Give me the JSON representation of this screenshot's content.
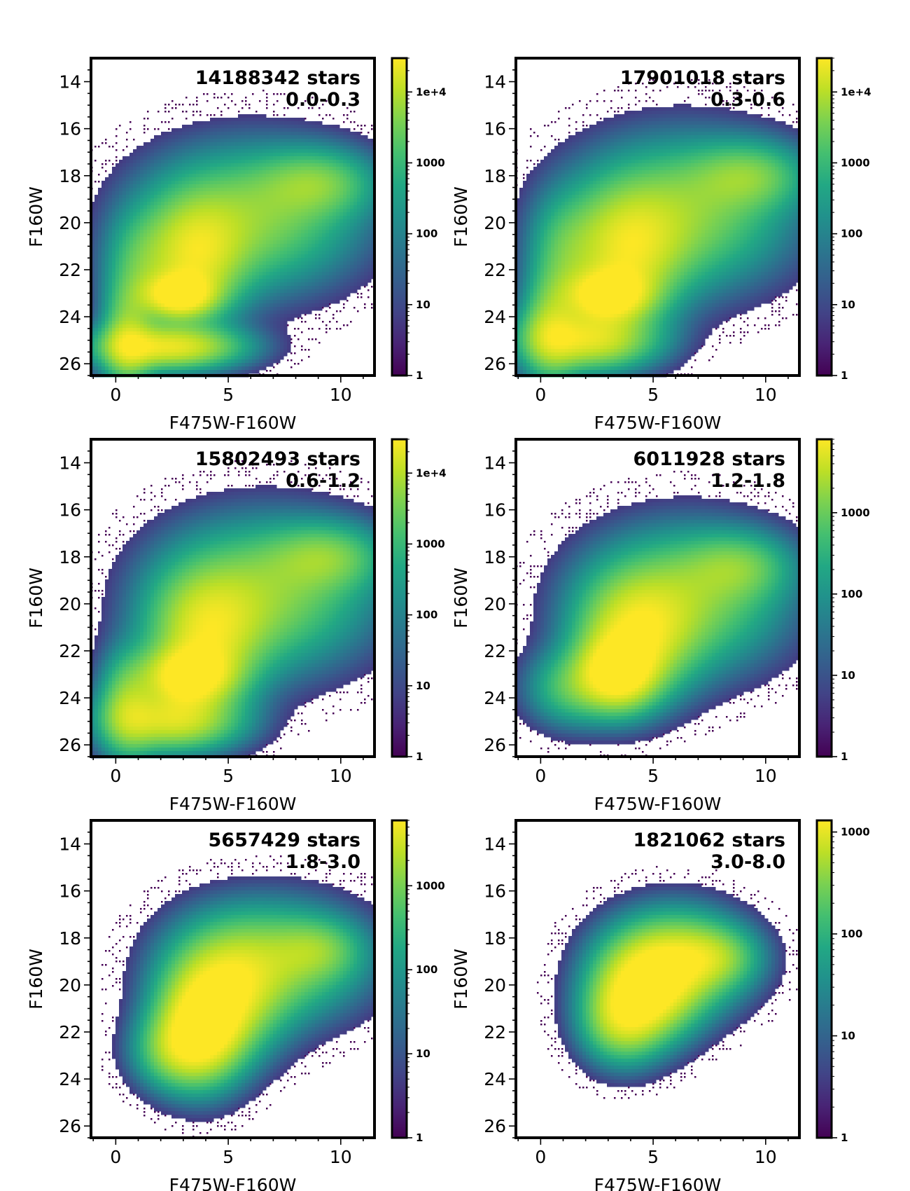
{
  "chart_data": [
    {
      "type": "heatmap",
      "title": "",
      "xlabel": "F475W-F160W",
      "ylabel": "F160W",
      "xlim": [
        -1.1,
        11.5
      ],
      "ylim": [
        26.5,
        13.0
      ],
      "xticks": [
        "0",
        "5",
        "10"
      ],
      "yticks": [
        "14",
        "16",
        "18",
        "20",
        "22",
        "24",
        "26"
      ],
      "annotation": {
        "count": "14188342 stars",
        "range": "0.0-0.3"
      },
      "colorbar": {
        "scale": "log",
        "min": 1,
        "max": 30000,
        "ticks": [
          "1",
          "10",
          "100",
          "1000",
          "1e+4"
        ]
      }
    },
    {
      "type": "heatmap",
      "title": "",
      "xlabel": "F475W-F160W",
      "ylabel": "F160W",
      "xlim": [
        -1.1,
        11.5
      ],
      "ylim": [
        26.5,
        13.0
      ],
      "xticks": [
        "0",
        "5",
        "10"
      ],
      "yticks": [
        "14",
        "16",
        "18",
        "20",
        "22",
        "24",
        "26"
      ],
      "annotation": {
        "count": "17901018 stars",
        "range": "0.3-0.6"
      },
      "colorbar": {
        "scale": "log",
        "min": 1,
        "max": 30000,
        "ticks": [
          "1",
          "10",
          "100",
          "1000",
          "1e+4"
        ]
      }
    },
    {
      "type": "heatmap",
      "title": "",
      "xlabel": "F475W-F160W",
      "ylabel": "F160W",
      "xlim": [
        -1.1,
        11.5
      ],
      "ylim": [
        26.5,
        13.0
      ],
      "xticks": [
        "0",
        "5",
        "10"
      ],
      "yticks": [
        "14",
        "16",
        "18",
        "20",
        "22",
        "24",
        "26"
      ],
      "annotation": {
        "count": "15802493 stars",
        "range": "0.6-1.2"
      },
      "colorbar": {
        "scale": "log",
        "min": 1,
        "max": 30000,
        "ticks": [
          "1",
          "10",
          "100",
          "1000",
          "1e+4"
        ]
      }
    },
    {
      "type": "heatmap",
      "title": "",
      "xlabel": "F475W-F160W",
      "ylabel": "F160W",
      "xlim": [
        -1.1,
        11.5
      ],
      "ylim": [
        26.5,
        13.0
      ],
      "xticks": [
        "0",
        "5",
        "10"
      ],
      "yticks": [
        "14",
        "16",
        "18",
        "20",
        "22",
        "24",
        "26"
      ],
      "annotation": {
        "count": "6011928 stars",
        "range": "1.2-1.8"
      },
      "colorbar": {
        "scale": "log",
        "min": 1,
        "max": 8000,
        "ticks": [
          "1",
          "10",
          "100",
          "1000"
        ]
      }
    },
    {
      "type": "heatmap",
      "title": "",
      "xlabel": "F475W-F160W",
      "ylabel": "F160W",
      "xlim": [
        -1.1,
        11.5
      ],
      "ylim": [
        26.5,
        13.0
      ],
      "xticks": [
        "0",
        "5",
        "10"
      ],
      "yticks": [
        "14",
        "16",
        "18",
        "20",
        "22",
        "24",
        "26"
      ],
      "annotation": {
        "count": "5657429 stars",
        "range": "1.8-3.0"
      },
      "colorbar": {
        "scale": "log",
        "min": 1,
        "max": 6000,
        "ticks": [
          "1",
          "10",
          "100",
          "1000"
        ]
      }
    },
    {
      "type": "heatmap",
      "title": "",
      "xlabel": "F475W-F160W",
      "ylabel": "F160W",
      "xlim": [
        -1.1,
        11.5
      ],
      "ylim": [
        26.5,
        13.0
      ],
      "xticks": [
        "0",
        "5",
        "10"
      ],
      "yticks": [
        "14",
        "16",
        "18",
        "20",
        "22",
        "24",
        "26"
      ],
      "annotation": {
        "count": "1821062 stars",
        "range": "3.0-8.0"
      },
      "colorbar": {
        "scale": "log",
        "min": 1,
        "max": 1300,
        "ticks": [
          "1",
          "10",
          "100",
          "1000"
        ]
      }
    }
  ]
}
